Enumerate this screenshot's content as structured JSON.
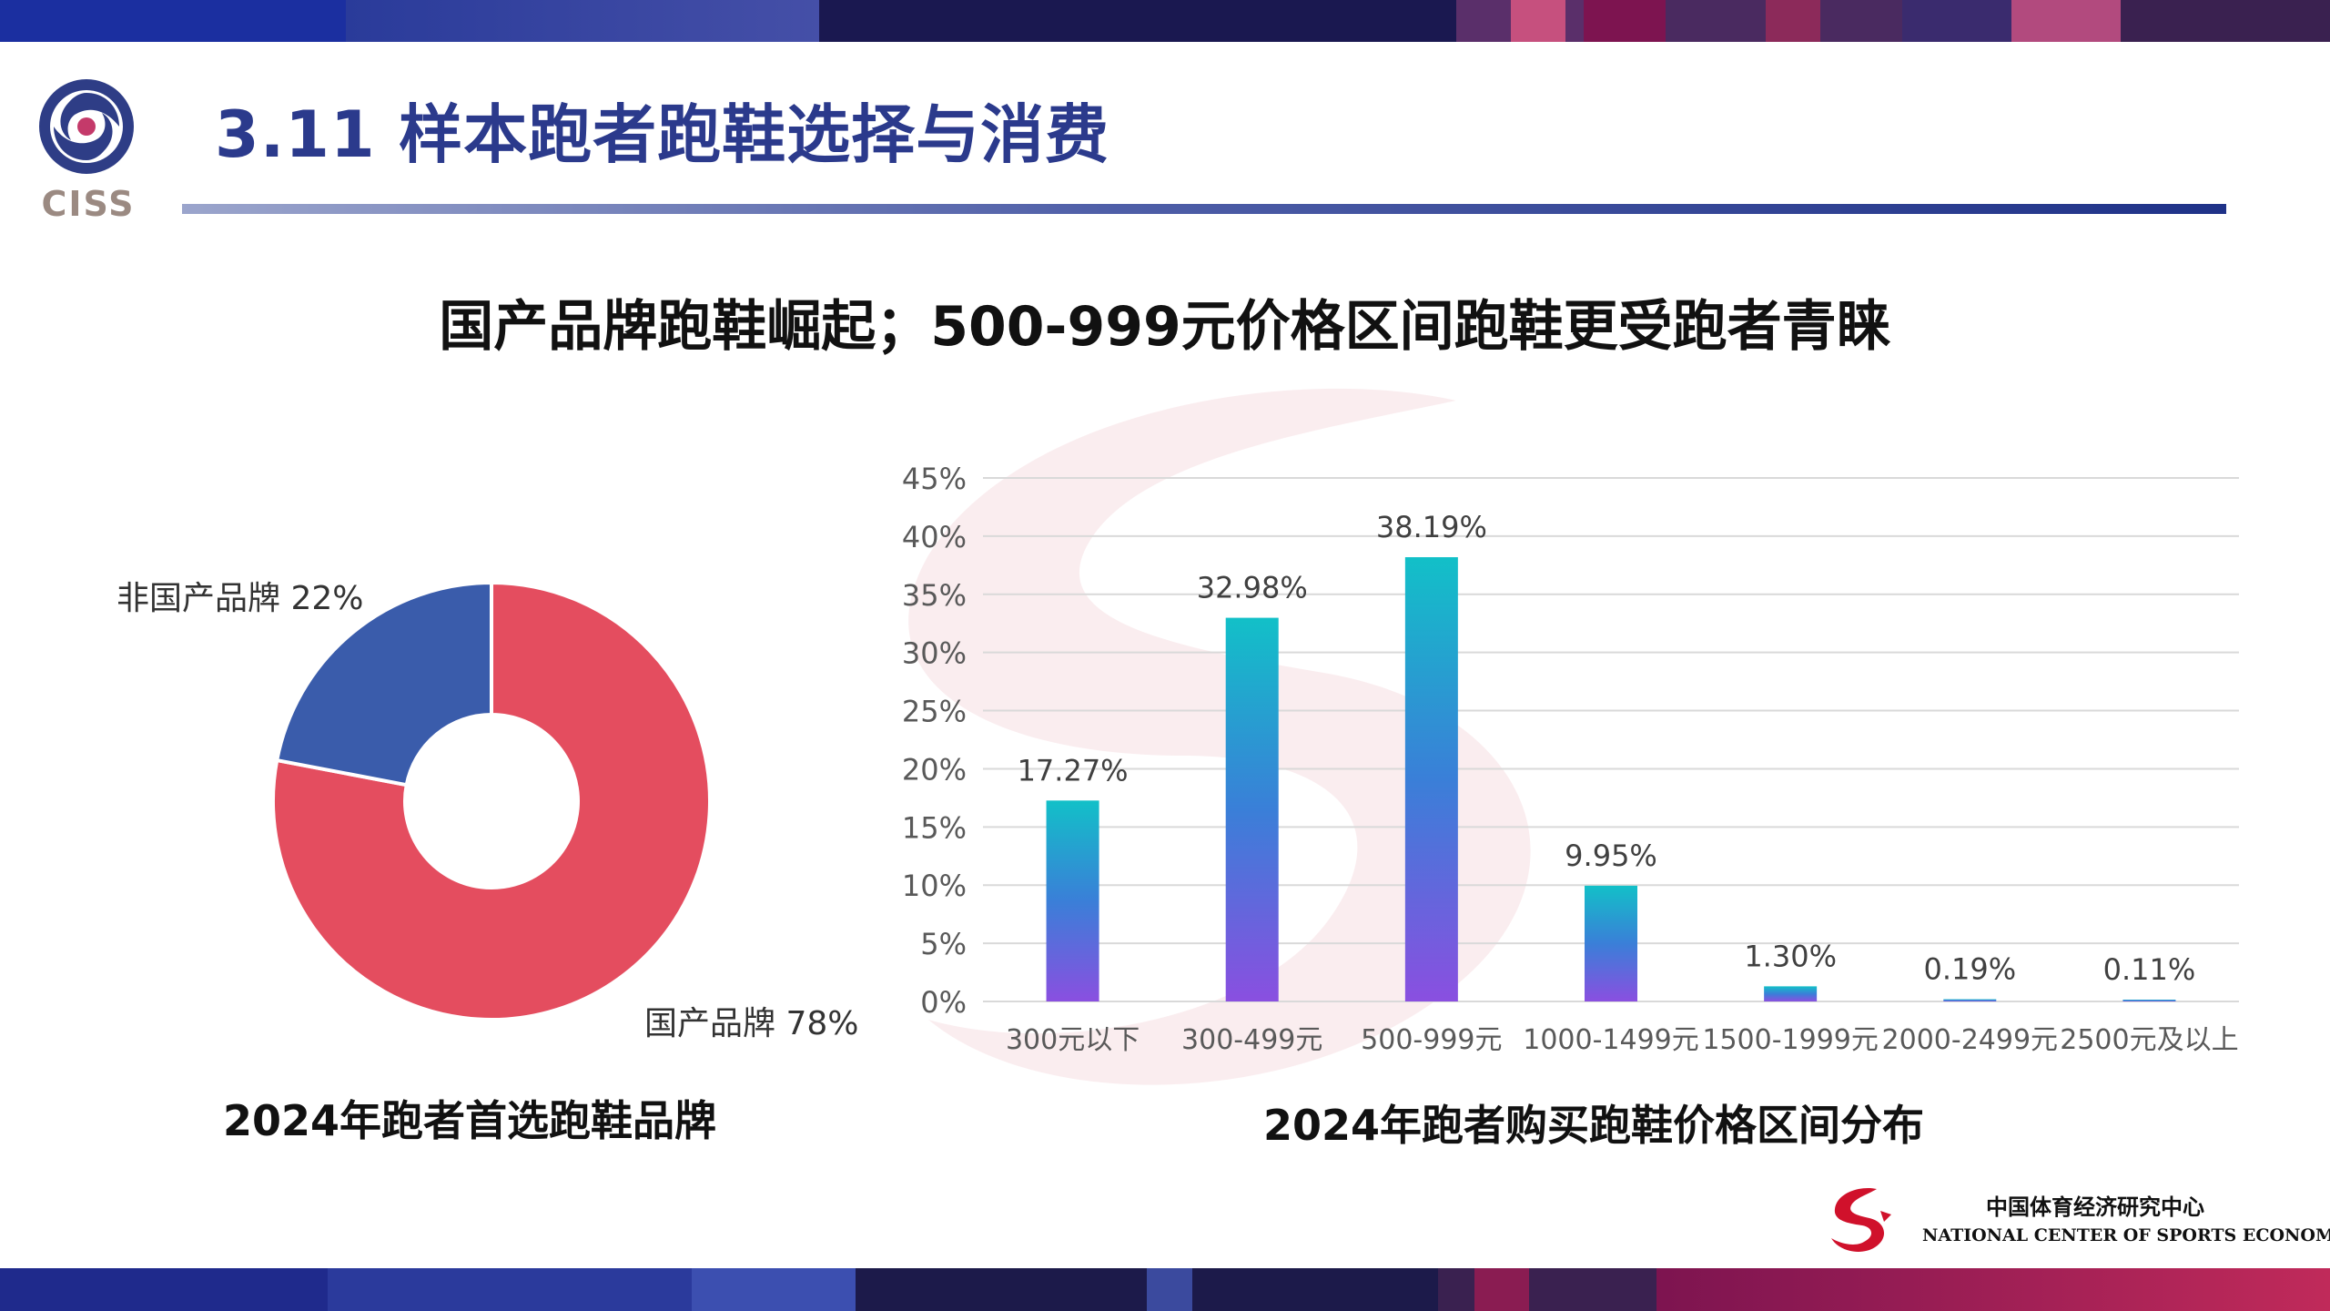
{
  "header": {
    "logo_text": "CISS",
    "title": "3.11 样本跑者跑鞋选择与消费"
  },
  "headline": "国产品牌跑鞋崛起；500-999元价格区间跑鞋更受跑者青睐",
  "colors": {
    "title_blue": "#2b3a8c",
    "domestic": "#e44d5f",
    "foreign": "#3a5cab",
    "bar_top": "#12c0c8",
    "bar_bottom": "#8a4fe0"
  },
  "chart_data": [
    {
      "type": "pie",
      "title": "2024年跑者首选跑鞋品牌",
      "slices": [
        {
          "label": "国产品牌",
          "value": 78,
          "display": "国产品牌 78%",
          "color": "#e44d5f"
        },
        {
          "label": "非国产品牌",
          "value": 22,
          "display": "非国产品牌 22%",
          "color": "#3a5cab"
        }
      ]
    },
    {
      "type": "bar",
      "title": "2024年跑者购买跑鞋价格区间分布",
      "categories": [
        "300元以下",
        "300-499元",
        "500-999元",
        "1000-1499元",
        "1500-1999元",
        "2000-2499元",
        "2500元及以上"
      ],
      "values": [
        17.27,
        32.98,
        38.19,
        9.95,
        1.3,
        0.19,
        0.11
      ],
      "value_labels": [
        "17.27%",
        "32.98%",
        "38.19%",
        "9.95%",
        "1.30%",
        "0.19%",
        "0.11%"
      ],
      "ylim": [
        0,
        45
      ],
      "yticks": [
        "0%",
        "5%",
        "10%",
        "15%",
        "20%",
        "25%",
        "30%",
        "35%",
        "40%",
        "45%"
      ],
      "grid": true
    }
  ],
  "footer": {
    "org_cn": "中国体育经济研究中心",
    "org_en": "NATIONAL CENTER OF SPORTS ECONOMIC"
  }
}
